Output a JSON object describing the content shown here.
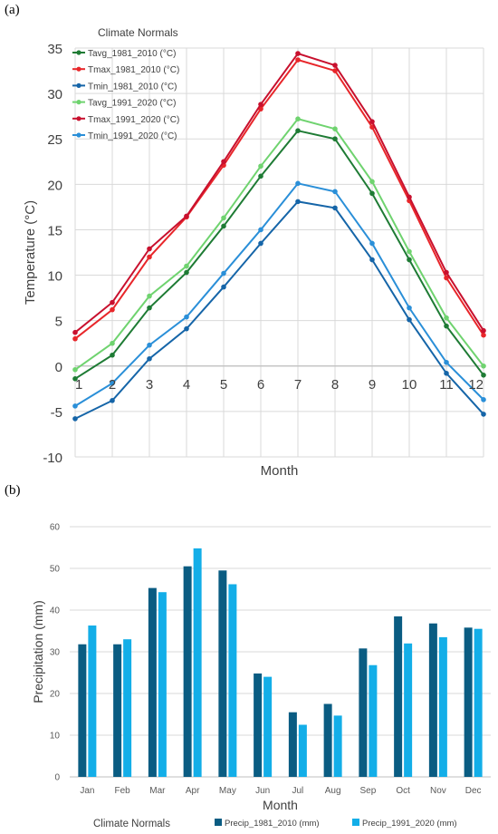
{
  "panels": {
    "a_label": "(a)",
    "b_label": "(b)"
  },
  "chart_data": [
    {
      "type": "line",
      "title": "",
      "legend_title": "Climate Normals",
      "legend_placement": "top-left",
      "xlabel": "Month",
      "ylabel": "Temperature (°C)",
      "x": [
        1,
        2,
        3,
        4,
        5,
        6,
        7,
        8,
        9,
        10,
        11,
        12
      ],
      "xticks": [
        "1",
        "2",
        "3",
        "4",
        "5",
        "6",
        "7",
        "8",
        "9",
        "10",
        "11",
        "12"
      ],
      "ylim": [
        -10,
        35
      ],
      "yticks": [
        "-10",
        "-5",
        "0",
        "5",
        "10",
        "15",
        "20",
        "25",
        "30",
        "35"
      ],
      "grid": true,
      "series": [
        {
          "name": "Tavg_1981_2010 (°C)",
          "color": "#1e7b34",
          "values": [
            -1.4,
            1.2,
            6.4,
            10.3,
            15.4,
            20.9,
            25.9,
            25.0,
            19.0,
            11.7,
            4.4,
            -1.0
          ]
        },
        {
          "name": "Tmax_1981_2010 (°C)",
          "color": "#e8262a",
          "values": [
            3.0,
            6.2,
            12.0,
            16.4,
            22.1,
            28.3,
            33.7,
            32.5,
            26.3,
            18.2,
            9.7,
            3.4
          ]
        },
        {
          "name": "Tmin_1981_2010 (°C)",
          "color": "#1565a8",
          "values": [
            -5.8,
            -3.8,
            0.8,
            4.1,
            8.7,
            13.5,
            18.1,
            17.4,
            11.7,
            5.1,
            -0.8,
            -5.3
          ]
        },
        {
          "name": "Tavg_1991_2020 (°C)",
          "color": "#6fd36f",
          "values": [
            -0.4,
            2.5,
            7.7,
            11.0,
            16.3,
            22.0,
            27.2,
            26.1,
            20.3,
            12.6,
            5.3,
            0.0
          ]
        },
        {
          "name": "Tmax_1991_2020 (°C)",
          "color": "#c8102e",
          "values": [
            3.7,
            7.0,
            12.9,
            16.5,
            22.5,
            28.8,
            34.4,
            33.1,
            26.9,
            18.6,
            10.3,
            3.9
          ]
        },
        {
          "name": "Tmin_1991_2020 (°C)",
          "color": "#2a8fd8",
          "values": [
            -4.4,
            -1.9,
            2.3,
            5.4,
            10.2,
            15.0,
            20.1,
            19.2,
            13.5,
            6.4,
            0.4,
            -3.7
          ]
        }
      ]
    },
    {
      "type": "bar",
      "title": "",
      "legend_title": "Climate Normals",
      "legend_placement": "bottom",
      "xlabel": "Month",
      "ylabel": "Precipitation (mm)",
      "categories": [
        "Jan",
        "Feb",
        "Mar",
        "Apr",
        "May",
        "Jun",
        "Jul",
        "Aug",
        "Sep",
        "Oct",
        "Nov",
        "Dec"
      ],
      "ylim": [
        0,
        60
      ],
      "yticks": [
        "0",
        "10",
        "20",
        "30",
        "40",
        "50",
        "60"
      ],
      "grid": true,
      "series": [
        {
          "name": "Precip_1981_2010 (mm)",
          "color": "#0a5c82",
          "values": [
            31.8,
            31.8,
            45.3,
            50.5,
            49.5,
            24.8,
            15.5,
            17.5,
            30.8,
            38.5,
            36.8,
            35.8
          ]
        },
        {
          "name": "Precip_1991_2020 (mm)",
          "color": "#13aee8",
          "values": [
            36.3,
            33.0,
            44.3,
            54.8,
            46.2,
            24.0,
            12.5,
            14.7,
            26.8,
            32.0,
            33.5,
            35.5
          ]
        }
      ]
    }
  ]
}
